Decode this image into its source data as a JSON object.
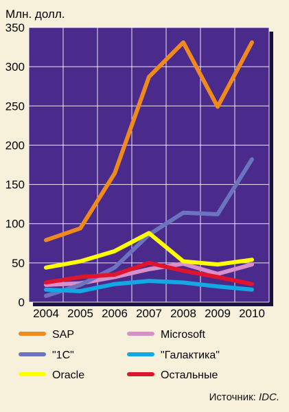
{
  "chart_data": {
    "type": "line",
    "title": "",
    "unit_label": "Млн. долл.",
    "xlabel": "",
    "ylabel": "",
    "x": [
      "2004",
      "2005",
      "2006",
      "2007",
      "2008",
      "2009",
      "2010"
    ],
    "yticks": [
      "0",
      "50",
      "100",
      "150",
      "200",
      "250",
      "300",
      "350"
    ],
    "ylim": [
      0,
      350
    ],
    "grid": true,
    "legend_position": "bottom",
    "plot_background": "#4a2a8a",
    "series": [
      {
        "name": "SAP",
        "color": "#f08a1e",
        "values": [
          79,
          94,
          164,
          287,
          331,
          249,
          331
        ]
      },
      {
        "name": "Microsoft",
        "color": "#d990c8",
        "values": [
          22,
          24,
          32,
          42,
          49,
          36,
          48
        ]
      },
      {
        "name": "\"1С\"",
        "color": "#6c74c0",
        "values": [
          8,
          22,
          44,
          86,
          114,
          112,
          182
        ]
      },
      {
        "name": "\"Галактика\"",
        "color": "#12a8e4",
        "values": [
          16,
          14,
          23,
          27,
          25,
          20,
          16
        ]
      },
      {
        "name": "Oracle",
        "color": "#ffff00",
        "values": [
          44,
          52,
          65,
          88,
          52,
          48,
          54
        ]
      },
      {
        "name": "Остальные",
        "color": "#e0142c",
        "values": [
          25,
          32,
          35,
          50,
          40,
          32,
          23
        ]
      }
    ],
    "source_prefix": "Источник: ",
    "source_name": "IDC."
  }
}
